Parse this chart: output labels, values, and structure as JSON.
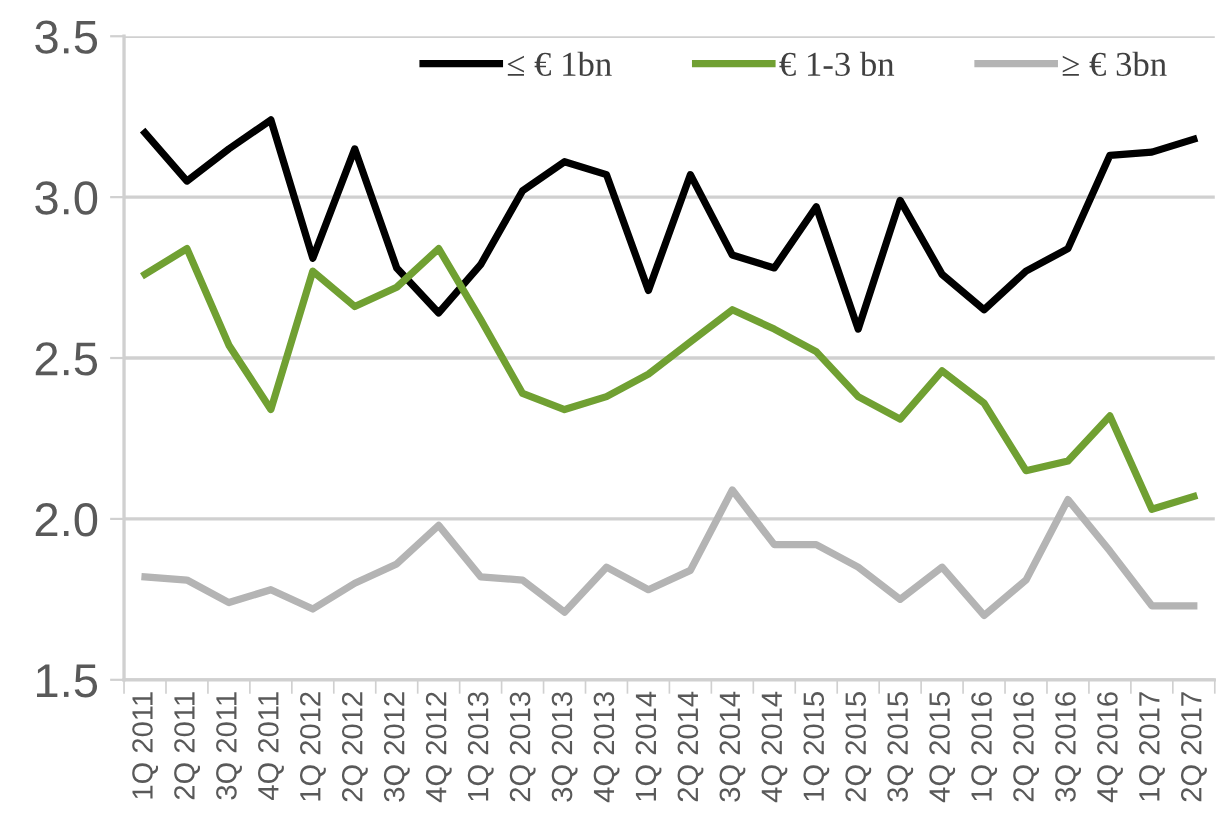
{
  "chart_data": {
    "type": "line",
    "categories": [
      "1Q 2011",
      "2Q 2011",
      "3Q 2011",
      "4Q 2011",
      "1Q 2012",
      "2Q 2012",
      "3Q 2012",
      "4Q 2012",
      "1Q 2013",
      "2Q 2013",
      "3Q 2013",
      "4Q 2013",
      "1Q 2014",
      "2Q 2014",
      "3Q 2014",
      "4Q 2014",
      "1Q 2015",
      "2Q 2015",
      "3Q 2015",
      "4Q 2015",
      "1Q 2016",
      "2Q 2016",
      "3Q 2016",
      "4Q 2016",
      "1Q 2017",
      "2Q 2017"
    ],
    "series": [
      {
        "name": "≤ € 1bn",
        "color": "#000000",
        "values": [
          3.2,
          3.05,
          3.15,
          3.24,
          2.81,
          3.15,
          2.78,
          2.64,
          2.79,
          3.02,
          3.11,
          3.07,
          2.71,
          3.07,
          2.82,
          2.78,
          2.97,
          2.59,
          2.99,
          2.76,
          2.65,
          2.77,
          2.84,
          3.13,
          3.14,
          3.18
        ]
      },
      {
        "name": "€ 1-3 bn",
        "color": "#70a032",
        "values": [
          2.76,
          2.84,
          2.54,
          2.34,
          2.77,
          2.66,
          2.72,
          2.84,
          2.62,
          2.39,
          2.34,
          2.38,
          2.45,
          2.55,
          2.65,
          2.59,
          2.52,
          2.38,
          2.31,
          2.46,
          2.36,
          2.15,
          2.18,
          2.32,
          2.03,
          2.07
        ]
      },
      {
        "name": "≥ € 3bn",
        "color": "#b4b4b4",
        "values": [
          1.82,
          1.81,
          1.74,
          1.78,
          1.72,
          1.8,
          1.86,
          1.98,
          1.82,
          1.81,
          1.71,
          1.85,
          1.78,
          1.84,
          2.09,
          1.92,
          1.92,
          1.85,
          1.75,
          1.85,
          1.7,
          1.81,
          2.06,
          1.9,
          1.73,
          1.73
        ]
      }
    ],
    "ylim": [
      1.5,
      3.5
    ],
    "yticks": [
      1.5,
      {
        "value": 2,
        "label": "2.0"
      },
      2.5,
      {
        "value": 3,
        "label": "3.0"
      },
      3.5
    ],
    "grid": "y",
    "legend": "top right",
    "marker": "none",
    "line_style": "solid"
  }
}
